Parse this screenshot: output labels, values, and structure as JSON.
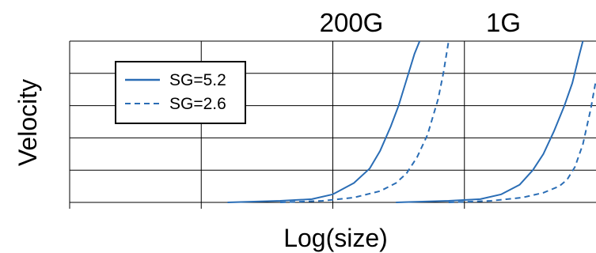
{
  "chart_data": {
    "type": "line",
    "xlabel": "Log(size)",
    "ylabel": "Velocity",
    "xlim": [
      0,
      1
    ],
    "ylim": [
      0,
      1
    ],
    "grid": true,
    "tick_labels_shown": false,
    "legend_placement": "top-left",
    "annotations": [
      {
        "text": "200G",
        "x": 0.64
      },
      {
        "text": "1G",
        "x": 0.945
      }
    ],
    "series": [
      {
        "name": "SG=5.2",
        "style": "solid",
        "color": "#2a6db5",
        "x": [
          0.3,
          0.4,
          0.46,
          0.5,
          0.54,
          0.57,
          0.59,
          0.61,
          0.625,
          0.64,
          0.655,
          0.665
        ],
        "y": [
          0.0,
          0.01,
          0.02,
          0.05,
          0.12,
          0.21,
          0.32,
          0.47,
          0.6,
          0.76,
          0.92,
          1.0
        ]
      },
      {
        "name": "SG=5.2",
        "style": "solid",
        "color": "#2a6db5",
        "x": [
          0.62,
          0.72,
          0.78,
          0.82,
          0.855,
          0.88,
          0.9,
          0.92,
          0.94,
          0.955,
          0.967,
          0.975
        ],
        "y": [
          0.0,
          0.01,
          0.02,
          0.05,
          0.11,
          0.2,
          0.3,
          0.44,
          0.6,
          0.74,
          0.9,
          1.0
        ]
      },
      {
        "name": "SG=2.6",
        "style": "dashed",
        "color": "#2a6db5",
        "x": [
          0.4,
          0.48,
          0.54,
          0.59,
          0.62,
          0.64,
          0.66,
          0.68,
          0.7,
          0.71,
          0.72
        ],
        "y": [
          0.0,
          0.01,
          0.03,
          0.07,
          0.12,
          0.18,
          0.28,
          0.42,
          0.64,
          0.8,
          1.0
        ]
      },
      {
        "name": "SG=2.6",
        "style": "dashed",
        "color": "#2a6db5",
        "x": [
          0.72,
          0.8,
          0.86,
          0.9,
          0.93,
          0.945,
          0.96,
          0.975,
          0.99,
          1.0
        ],
        "y": [
          0.0,
          0.01,
          0.03,
          0.06,
          0.1,
          0.14,
          0.22,
          0.36,
          0.58,
          0.76
        ]
      }
    ],
    "legend": [
      {
        "label": "SG=5.2",
        "style": "solid"
      },
      {
        "label": "SG=2.6",
        "style": "dashed"
      }
    ]
  },
  "colors": {
    "line": "#2a6db5",
    "grid": "#000000"
  }
}
